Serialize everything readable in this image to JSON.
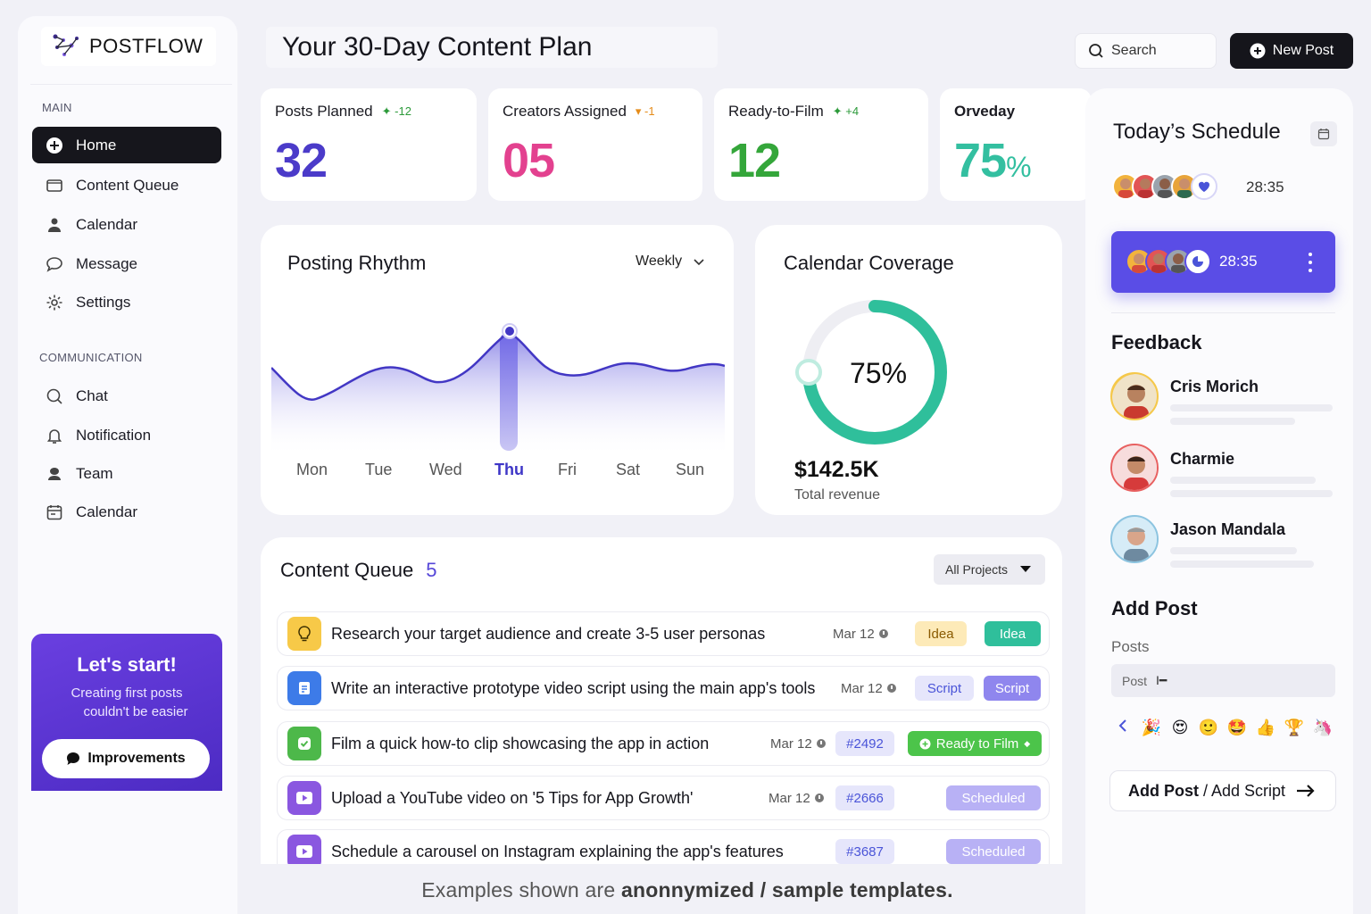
{
  "brand": {
    "name": "POSTFLOW"
  },
  "sidebar": {
    "main_label": "MAIN",
    "main_items": [
      {
        "label": "Home",
        "icon": "plus-circle-icon",
        "active": true
      },
      {
        "label": "Content Queue",
        "icon": "folder-icon"
      },
      {
        "label": "Calendar",
        "icon": "user-icon"
      },
      {
        "label": "Message",
        "icon": "message-icon"
      },
      {
        "label": "Settings",
        "icon": "gear-icon"
      }
    ],
    "comm_label": "COMMUNICATION",
    "comm_items": [
      {
        "label": "Chat",
        "icon": "search-icon"
      },
      {
        "label": "Notification",
        "icon": "bell-icon"
      },
      {
        "label": "Team",
        "icon": "team-icon"
      },
      {
        "label": "Calendar",
        "icon": "calendar-icon"
      }
    ],
    "promo": {
      "title": "Let's start!",
      "line1": "Creating first posts",
      "line2": "couldn't be easier",
      "button": "Improvements"
    }
  },
  "header": {
    "title": "Your 30-Day Content Plan",
    "search_placeholder": "Search",
    "new_post": "New Post"
  },
  "stats": [
    {
      "label": "Posts Planned",
      "delta": "-12",
      "value": "32",
      "color": "#4b3bc9"
    },
    {
      "label": "Creators Assigned",
      "delta": "-1",
      "value": "05",
      "color": "#e3418f"
    },
    {
      "label": "Ready-to-Film",
      "delta": "+4",
      "value": "12",
      "color": "#34a63a"
    },
    {
      "label": "Orveday",
      "value": "75",
      "unit": "%",
      "color": "#33bfa0"
    }
  ],
  "rhythm": {
    "title": "Posting Rhythm",
    "period": "Weekly",
    "days": [
      "Mon",
      "Tue",
      "Wed",
      "Thu",
      "Fri",
      "Sat",
      "Sun"
    ],
    "active_day": "Thu"
  },
  "coverage": {
    "title": "Calendar Coverage",
    "percent": 75,
    "percent_label": "75%",
    "revenue": "$142.5K",
    "revenue_label": "Total revenue",
    "accent": "#2fbf9b"
  },
  "queue": {
    "title": "Content Queue",
    "count": "5",
    "filter": "All Projects",
    "rows": [
      {
        "text": "Research your target audience and create 3-5 user personas",
        "date": "Mar 12",
        "tag": "Idea",
        "status": "Idea"
      },
      {
        "text": "Write an interactive prototype video script using the main app's tools",
        "date": "Mar 12",
        "tag": "Script",
        "status": "Script"
      },
      {
        "text": "Film a quick how-to clip showcasing the app in action",
        "date": "Mar 12",
        "tag": "#2492",
        "status": "Ready to Film"
      },
      {
        "text": "Upload a YouTube video on '5 Tips for App Growth'",
        "date": "Mar 12",
        "tag": "#2666",
        "status": "Scheduled"
      },
      {
        "text": "Schedule a carousel on Instagram explaining the app's features",
        "tag": "#3687",
        "status": "Scheduled"
      }
    ]
  },
  "disclaimer": {
    "prefix": "Examples shown are",
    "bold": "anonnymized / sample templates."
  },
  "schedule": {
    "title": "Today’s Schedule",
    "time1": "28:35",
    "time2": "28:35"
  },
  "feedback": {
    "title": "Feedback",
    "people": [
      "Cris Morich",
      "Charmie",
      "Jason Mandala"
    ]
  },
  "add_post": {
    "title": "Add Post",
    "posts_label": "Posts",
    "input_value": "Post",
    "link_bold": "Add Post",
    "link_rest": " / Add Script"
  }
}
